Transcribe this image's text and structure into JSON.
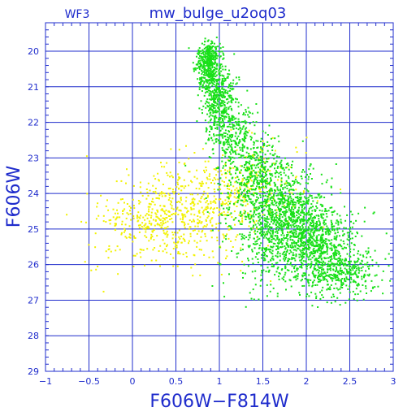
{
  "colors": {
    "frame": "#1f2ccc",
    "text": "#1f2ccc",
    "grid": "#1f2ccc",
    "series_green": "#18e018",
    "series_yellow": "#f2f200",
    "background": "#ffffff"
  },
  "header": {
    "title": "mw_bulge_u2oq03",
    "camera": "WF3"
  },
  "chart_data": {
    "type": "scatter",
    "title": "mw_bulge_u2oq03",
    "annotation": "WF3",
    "xlabel": "F606W−F814W",
    "ylabel": "F606W",
    "xlim": [
      -1,
      3
    ],
    "ylim": [
      29,
      19.2
    ],
    "y_inverted": true,
    "grid": true,
    "legend": "none",
    "xticks": [
      "−1",
      "−0.5",
      "0",
      "0.5",
      "1",
      "1.5",
      "2",
      "2.5",
      "3"
    ],
    "xtick_values": [
      -1,
      -0.5,
      0,
      0.5,
      1,
      1.5,
      2,
      2.5,
      3
    ],
    "yticks": [
      "20",
      "21",
      "22",
      "23",
      "24",
      "25",
      "26",
      "27",
      "28",
      "29"
    ],
    "ytick_values": [
      20,
      21,
      22,
      23,
      24,
      25,
      26,
      27,
      28,
      29
    ],
    "series": [
      {
        "color_key": "series_yellow",
        "approx_count": 900,
        "clusters": [
          {
            "cx": 0.55,
            "cy": 24.6,
            "sx": 0.45,
            "sy": 0.7,
            "n": 520
          },
          {
            "cx": 1.25,
            "cy": 23.8,
            "sx": 0.35,
            "sy": 0.6,
            "n": 260
          },
          {
            "cx": 0.15,
            "cy": 24.8,
            "sx": 0.35,
            "sy": 0.5,
            "n": 120
          }
        ]
      },
      {
        "color_key": "series_green",
        "approx_count": 3600,
        "clusters": [
          {
            "cx": 0.88,
            "cy": 20.3,
            "sx": 0.07,
            "sy": 0.35,
            "n": 420
          },
          {
            "cx": 0.98,
            "cy": 21.3,
            "sx": 0.09,
            "sy": 0.45,
            "n": 380
          },
          {
            "cx": 1.15,
            "cy": 22.3,
            "sx": 0.15,
            "sy": 0.45,
            "n": 300
          },
          {
            "cx": 1.4,
            "cy": 23.4,
            "sx": 0.2,
            "sy": 0.5,
            "n": 360
          },
          {
            "cx": 1.75,
            "cy": 24.5,
            "sx": 0.25,
            "sy": 0.55,
            "n": 700
          },
          {
            "cx": 2.05,
            "cy": 25.4,
            "sx": 0.25,
            "sy": 0.55,
            "n": 760
          },
          {
            "cx": 2.4,
            "cy": 26.2,
            "sx": 0.22,
            "sy": 0.4,
            "n": 380
          },
          {
            "cx": 1.6,
            "cy": 25.3,
            "sx": 0.3,
            "sy": 0.8,
            "n": 300
          }
        ]
      }
    ]
  }
}
